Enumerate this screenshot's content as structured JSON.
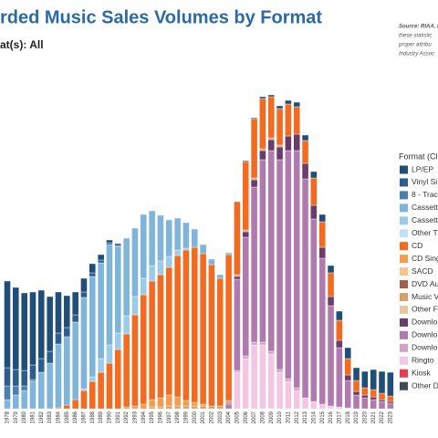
{
  "chart_data": {
    "type": "stacked_bar",
    "title": "rded Music Sales Volumes by Format",
    "subtitle": "at(s): All",
    "note_lines": [
      "Source: RIAA. I",
      "these statistic",
      "proper attribu",
      "Industry Assoc"
    ],
    "legend_title": "Format (Cli",
    "legend_position": "right",
    "ylim": [
      0,
      400
    ],
    "categories": [
      "1978",
      "1979",
      "1980",
      "1981",
      "1982",
      "1983",
      "1984",
      "1985",
      "1986",
      "1987",
      "1988",
      "1989",
      "1990",
      "1991",
      "1992",
      "1993",
      "1994",
      "1995",
      "1996",
      "1997",
      "1998",
      "1999",
      "2000",
      "2001",
      "2002",
      "2003",
      "2004",
      "2005",
      "2006",
      "2007",
      "2008",
      "2009",
      "2010",
      "2011",
      "2012",
      "2013",
      "2014",
      "2015",
      "2016",
      "2017",
      "2018",
      "2019",
      "2020",
      "2021",
      "2022",
      "2023"
    ],
    "series": [
      {
        "name": "LP/EP",
        "color": "#1f4e79",
        "values": [
          95,
          90,
          85,
          80,
          75,
          60,
          45,
          35,
          25,
          15,
          10,
          6,
          3,
          2,
          0,
          0,
          0,
          0,
          0,
          0,
          0,
          0,
          0,
          0,
          0,
          0,
          0,
          0,
          1,
          1,
          2,
          2,
          3,
          4,
          5,
          6,
          7,
          8,
          8,
          10,
          12,
          14,
          18,
          22,
          24,
          26
        ]
      },
      {
        "name": "Vinyl Si",
        "color": "#2c5d8f",
        "values": [
          20,
          18,
          17,
          16,
          15,
          13,
          12,
          10,
          8,
          6,
          4,
          3,
          2,
          1,
          0,
          0,
          0,
          0,
          0,
          0,
          0,
          0,
          0,
          0,
          0,
          0,
          0,
          0,
          0,
          0,
          0,
          0,
          0,
          0,
          0,
          0,
          0,
          0,
          0,
          0,
          0,
          0,
          0,
          0,
          0,
          0
        ]
      },
      {
        "name": "8 - Trac",
        "color": "#4a7fb0",
        "values": [
          15,
          10,
          5,
          2,
          0,
          0,
          0,
          0,
          0,
          0,
          0,
          0,
          0,
          0,
          0,
          0,
          0,
          0,
          0,
          0,
          0,
          0,
          0,
          0,
          0,
          0,
          0,
          0,
          0,
          0,
          0,
          0,
          0,
          0,
          0,
          0,
          0,
          0,
          0,
          0,
          0,
          0,
          0,
          0,
          0,
          0
        ]
      },
      {
        "name": "Cassett",
        "color": "#7fb5db",
        "values": [
          10,
          15,
          20,
          30,
          40,
          50,
          70,
          75,
          85,
          100,
          110,
          105,
          110,
          95,
          85,
          75,
          70,
          60,
          50,
          40,
          35,
          28,
          20,
          10,
          6,
          4,
          2,
          0,
          0,
          0,
          0,
          0,
          0,
          0,
          0,
          0,
          0,
          0,
          0,
          0,
          0,
          0,
          0,
          0,
          0,
          0
        ]
      },
      {
        "name": "Cassett",
        "color": "#9ccbe9",
        "values": [
          0,
          0,
          0,
          0,
          0,
          0,
          0,
          0,
          0,
          2,
          5,
          15,
          20,
          18,
          20,
          20,
          18,
          17,
          15,
          12,
          6,
          2,
          0,
          0,
          0,
          0,
          0,
          0,
          0,
          0,
          0,
          0,
          0,
          0,
          0,
          0,
          0,
          0,
          0,
          0,
          0,
          0,
          0,
          0,
          0,
          0
        ]
      },
      {
        "name": "Other T",
        "color": "#c4e1f3",
        "values": [
          0,
          0,
          0,
          0,
          0,
          0,
          0,
          0,
          0,
          0,
          0,
          0,
          0,
          0,
          0,
          0,
          0,
          0,
          0,
          0,
          0,
          0,
          0,
          0,
          0,
          0,
          0,
          0,
          0,
          0,
          0,
          0,
          0,
          0,
          0,
          0,
          0,
          0,
          0,
          0,
          0,
          0,
          0,
          0,
          0,
          0
        ]
      },
      {
        "name": "CD",
        "color": "#f26b21",
        "values": [
          0,
          0,
          0,
          0,
          0,
          0,
          1,
          4,
          10,
          20,
          30,
          40,
          50,
          65,
          80,
          100,
          120,
          130,
          135,
          140,
          155,
          165,
          170,
          165,
          155,
          140,
          160,
          80,
          75,
          65,
          55,
          45,
          40,
          35,
          30,
          25,
          30,
          28,
          26,
          22,
          18,
          12,
          8,
          8,
          7,
          6
        ]
      },
      {
        "name": "CD Sing",
        "color": "#f59a4e",
        "values": [
          0,
          0,
          0,
          0,
          0,
          0,
          0,
          0,
          0,
          0,
          0,
          0,
          0,
          0,
          2,
          3,
          5,
          8,
          10,
          12,
          10,
          6,
          4,
          2,
          0,
          0,
          0,
          0,
          0,
          0,
          0,
          0,
          0,
          0,
          0,
          0,
          0,
          0,
          0,
          0,
          0,
          0,
          0,
          0,
          0,
          0
        ]
      },
      {
        "name": "SACD",
        "color": "#f9c48c",
        "values": [
          0,
          0,
          0,
          0,
          0,
          0,
          0,
          0,
          0,
          0,
          0,
          0,
          0,
          0,
          0,
          0,
          0,
          0,
          0,
          0,
          0,
          0,
          0,
          0,
          0,
          0,
          0,
          0,
          0,
          0,
          0,
          0,
          0,
          0,
          0,
          0,
          0,
          0,
          0,
          0,
          0,
          0,
          0,
          0,
          0,
          0
        ]
      },
      {
        "name": "DVD Au",
        "color": "#a0614a",
        "values": [
          0,
          0,
          0,
          0,
          0,
          0,
          0,
          0,
          0,
          0,
          0,
          0,
          0,
          0,
          0,
          0,
          0,
          0,
          0,
          0,
          0,
          0,
          0,
          0,
          0,
          0,
          0,
          0,
          0,
          0,
          0,
          0,
          0,
          0,
          0,
          0,
          0,
          0,
          0,
          0,
          0,
          0,
          0,
          0,
          0,
          0
        ]
      },
      {
        "name": "Music V",
        "color": "#d3a06a",
        "values": [
          0,
          0,
          0,
          0,
          0,
          0,
          0,
          0,
          0,
          0,
          0,
          0,
          0,
          0,
          0,
          0,
          0,
          2,
          2,
          3,
          3,
          3,
          3,
          3,
          3,
          3,
          3,
          2,
          2,
          2,
          2,
          2,
          2,
          0,
          0,
          0,
          0,
          0,
          0,
          0,
          0,
          0,
          0,
          0,
          0,
          0
        ]
      },
      {
        "name": "Other F",
        "color": "#e8c89a",
        "values": [
          0,
          0,
          0,
          0,
          0,
          0,
          0,
          0,
          0,
          0,
          0,
          0,
          0,
          0,
          0,
          0,
          0,
          0,
          0,
          0,
          0,
          0,
          0,
          0,
          0,
          0,
          0,
          0,
          0,
          0,
          0,
          0,
          0,
          0,
          0,
          0,
          0,
          0,
          0,
          0,
          0,
          0,
          0,
          0,
          0,
          0
        ]
      },
      {
        "name": "Downlo",
        "color": "#6b3b6b",
        "values": [
          0,
          0,
          0,
          0,
          0,
          0,
          0,
          0,
          0,
          0,
          0,
          0,
          0,
          0,
          0,
          0,
          0,
          0,
          0,
          0,
          0,
          0,
          0,
          0,
          0,
          0,
          1,
          3,
          6,
          8,
          10,
          12,
          14,
          16,
          18,
          17,
          15,
          12,
          10,
          8,
          6,
          4,
          3,
          3,
          2,
          2
        ]
      },
      {
        "name": "Downlo",
        "color": "#b07aaf",
        "values": [
          0,
          0,
          0,
          0,
          0,
          0,
          0,
          0,
          0,
          0,
          0,
          0,
          0,
          0,
          0,
          0,
          0,
          0,
          0,
          0,
          0,
          0,
          0,
          0,
          0,
          0,
          5,
          100,
          130,
          170,
          200,
          220,
          230,
          250,
          260,
          240,
          200,
          160,
          110,
          65,
          30,
          15,
          12,
          10,
          8,
          6
        ]
      },
      {
        "name": "Downlo",
        "color": "#d2a3c9",
        "values": [
          0,
          0,
          0,
          0,
          0,
          0,
          0,
          0,
          0,
          0,
          0,
          0,
          0,
          0,
          0,
          0,
          0,
          0,
          0,
          0,
          0,
          0,
          0,
          0,
          0,
          0,
          0,
          2,
          3,
          3,
          3,
          3,
          3,
          3,
          3,
          0,
          0,
          0,
          0,
          0,
          0,
          0,
          0,
          0,
          0,
          0
        ]
      },
      {
        "name": "Ringto",
        "color": "#f3c6e4",
        "values": [
          0,
          0,
          0,
          0,
          0,
          0,
          0,
          0,
          0,
          0,
          0,
          0,
          0,
          0,
          0,
          0,
          0,
          0,
          0,
          0,
          0,
          0,
          0,
          0,
          0,
          0,
          0,
          40,
          55,
          70,
          70,
          60,
          40,
          30,
          20,
          12,
          8,
          5,
          3,
          2,
          1,
          0,
          0,
          0,
          0,
          0
        ]
      },
      {
        "name": "Kiosk",
        "color": "#e63e54",
        "values": [
          0,
          0,
          0,
          0,
          0,
          0,
          0,
          0,
          0,
          0,
          0,
          0,
          0,
          0,
          0,
          0,
          0,
          0,
          0,
          0,
          0,
          0,
          0,
          0,
          0,
          0,
          0,
          0,
          0,
          0,
          0,
          0,
          0,
          0,
          0,
          0,
          0,
          0,
          0,
          0,
          0,
          0,
          0,
          0,
          0,
          0
        ]
      },
      {
        "name": "Other D",
        "color": "#3d4a57",
        "values": [
          0,
          0,
          0,
          0,
          0,
          0,
          0,
          0,
          0,
          0,
          0,
          0,
          0,
          0,
          0,
          0,
          0,
          0,
          0,
          0,
          0,
          0,
          0,
          0,
          0,
          0,
          0,
          0,
          0,
          0,
          0,
          0,
          0,
          0,
          0,
          0,
          0,
          0,
          0,
          0,
          0,
          0,
          0,
          0,
          0,
          0
        ]
      }
    ]
  }
}
